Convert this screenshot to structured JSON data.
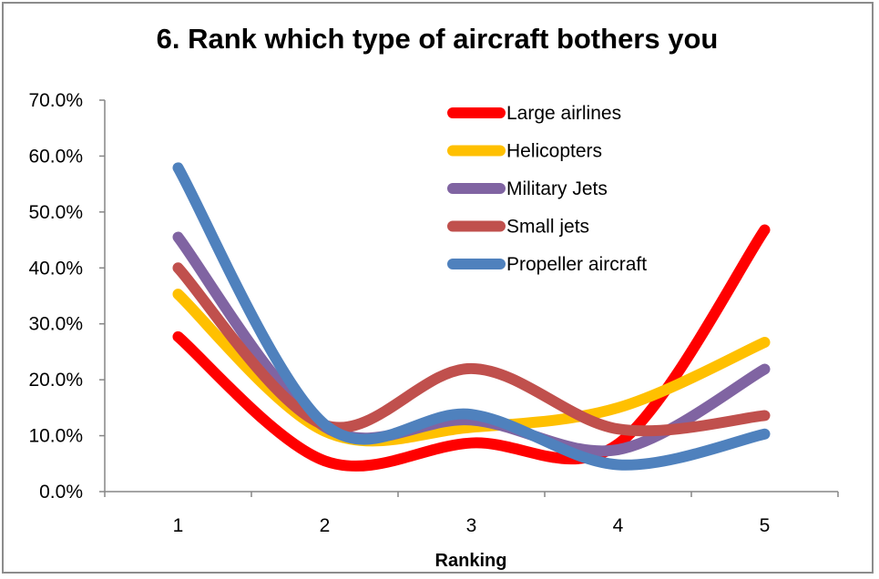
{
  "chart_data": {
    "type": "line",
    "title": "6. Rank which type of aircraft bothers you",
    "xlabel": "Ranking",
    "ylabel": "",
    "categories": [
      "1",
      "2",
      "3",
      "4",
      "5"
    ],
    "y_ticks": [
      "0.0%",
      "10.0%",
      "20.0%",
      "30.0%",
      "40.0%",
      "50.0%",
      "60.0%",
      "70.0%"
    ],
    "ylim": [
      0,
      70
    ],
    "smooth": true,
    "grid": false,
    "legend_position": "top-right",
    "series": [
      {
        "name": "Large airlines",
        "color": "#ff0000",
        "values": [
          27.7,
          5.5,
          8.7,
          8.5,
          46.8
        ]
      },
      {
        "name": "Helicopters",
        "color": "#ffc000",
        "values": [
          35.3,
          10.8,
          11.5,
          15.0,
          26.7
        ]
      },
      {
        "name": "Military Jets",
        "color": "#8064a2",
        "values": [
          45.5,
          11.6,
          12.8,
          7.5,
          21.9
        ]
      },
      {
        "name": "Small jets",
        "color": "#c0504d",
        "values": [
          40.0,
          11.9,
          22.0,
          11.2,
          13.6
        ]
      },
      {
        "name": "Propeller aircraft",
        "color": "#4f81bd",
        "values": [
          57.9,
          12.0,
          13.8,
          4.8,
          10.3
        ]
      }
    ]
  }
}
